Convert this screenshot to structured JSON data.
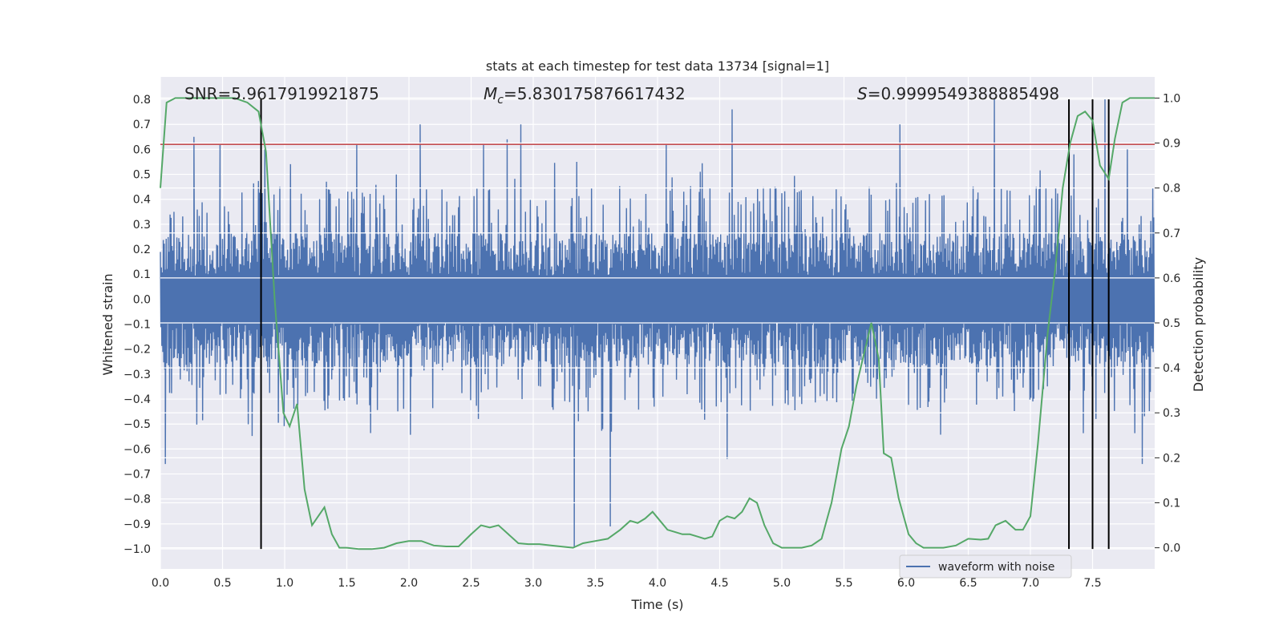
{
  "chart_data": {
    "type": "line",
    "title": "stats at each timestep for test data 13734 [signal=1]",
    "xlabel": "Time (s)",
    "ylabel": "Whitened strain",
    "y2label": "Detection probability",
    "xlim": [
      0.0,
      8.0
    ],
    "ylim": [
      -1.08,
      0.89
    ],
    "y2lim": [
      -0.047,
      1.047
    ],
    "x_ticks": [
      "0.0",
      "0.5",
      "1.0",
      "1.5",
      "2.0",
      "2.5",
      "3.0",
      "3.5",
      "4.0",
      "4.5",
      "5.0",
      "5.5",
      "6.0",
      "6.5",
      "7.0",
      "7.5"
    ],
    "y_ticks": [
      "0.8",
      "0.7",
      "0.6",
      "0.5",
      "0.4",
      "0.3",
      "0.2",
      "0.1",
      "0.0",
      "−0.1",
      "−0.2",
      "−0.3",
      "−0.4",
      "−0.5",
      "−0.6",
      "−0.7",
      "−0.8",
      "−0.9",
      "−1.0"
    ],
    "y2_ticks": [
      "1.0",
      "0.9",
      "0.8",
      "0.7",
      "0.6",
      "0.5",
      "0.4",
      "0.3",
      "0.2",
      "0.1",
      "0.0"
    ],
    "grid": true,
    "legend": {
      "position": "lower-right",
      "entries": [
        "waveform with noise"
      ]
    },
    "annotations": {
      "snr": "SNR=5.9617919921875",
      "mc_symbol": "M",
      "mc_sub": "c",
      "mc_value": "=5.830175876617432",
      "s_symbol": "S",
      "s_value": "=0.9999549388885498"
    },
    "threshold_line": {
      "y": 0.62,
      "color": "#c44e52"
    },
    "vertical_lines": [
      0.81,
      7.31,
      7.5,
      7.63
    ],
    "waveform": {
      "name": "waveform with noise",
      "color": "#4c72b0",
      "sample_rate": 256,
      "duration": 8.0,
      "core_amplitude": 0.27,
      "spikes": [
        [
          0.04,
          -0.66
        ],
        [
          0.27,
          0.65
        ],
        [
          0.48,
          0.62
        ],
        [
          0.84,
          0.6
        ],
        [
          1.58,
          0.62
        ],
        [
          2.09,
          0.7
        ],
        [
          2.6,
          0.62
        ],
        [
          2.79,
          0.64
        ],
        [
          2.9,
          0.7
        ],
        [
          3.33,
          -0.99
        ],
        [
          3.62,
          -0.91
        ],
        [
          4.07,
          0.62
        ],
        [
          4.56,
          -0.64
        ],
        [
          4.6,
          0.76
        ],
        [
          6.71,
          0.8
        ],
        [
          7.6,
          0.8
        ],
        [
          7.78,
          0.6
        ],
        [
          7.9,
          -0.66
        ],
        [
          3.35,
          0.55
        ],
        [
          5.95,
          0.7
        ],
        [
          7.35,
          0.58
        ]
      ]
    },
    "detection_probability": {
      "color": "#55a868",
      "x": [
        0.0,
        0.05,
        0.12,
        0.2,
        0.3,
        0.4,
        0.5,
        0.6,
        0.7,
        0.79,
        0.85,
        0.92,
        0.99,
        1.04,
        1.1,
        1.16,
        1.22,
        1.27,
        1.32,
        1.38,
        1.44,
        1.5,
        1.6,
        1.7,
        1.8,
        1.9,
        2.0,
        2.1,
        2.2,
        2.3,
        2.4,
        2.5,
        2.58,
        2.65,
        2.72,
        2.8,
        2.88,
        2.96,
        3.05,
        3.15,
        3.25,
        3.32,
        3.4,
        3.5,
        3.6,
        3.7,
        3.78,
        3.84,
        3.9,
        3.96,
        4.02,
        4.08,
        4.14,
        4.2,
        4.26,
        4.32,
        4.38,
        4.44,
        4.5,
        4.56,
        4.62,
        4.68,
        4.74,
        4.8,
        4.86,
        4.93,
        5.0,
        5.08,
        5.16,
        5.24,
        5.32,
        5.4,
        5.48,
        5.54,
        5.6,
        5.66,
        5.72,
        5.78,
        5.82,
        5.88,
        5.94,
        6.02,
        6.08,
        6.14,
        6.2,
        6.3,
        6.4,
        6.5,
        6.6,
        6.66,
        6.72,
        6.8,
        6.88,
        6.94,
        7.0,
        7.06,
        7.14,
        7.2,
        7.26,
        7.32,
        7.38,
        7.44,
        7.5,
        7.56,
        7.63,
        7.68,
        7.74,
        7.8,
        7.86,
        7.93,
        8.0
      ],
      "y": [
        0.8,
        0.99,
        1.0,
        1.0,
        1.0,
        1.0,
        1.0,
        1.0,
        0.99,
        0.97,
        0.88,
        0.55,
        0.3,
        0.27,
        0.32,
        0.13,
        0.05,
        0.07,
        0.09,
        0.03,
        0.0,
        0.0,
        -0.003,
        -0.003,
        0.0,
        0.01,
        0.015,
        0.015,
        0.005,
        0.003,
        0.003,
        0.03,
        0.05,
        0.045,
        0.05,
        0.03,
        0.01,
        0.008,
        0.008,
        0.005,
        0.002,
        0.0,
        0.01,
        0.015,
        0.02,
        0.04,
        0.06,
        0.055,
        0.065,
        0.08,
        0.06,
        0.04,
        0.035,
        0.03,
        0.03,
        0.025,
        0.02,
        0.025,
        0.06,
        0.07,
        0.065,
        0.08,
        0.11,
        0.1,
        0.05,
        0.01,
        0.0,
        0.0,
        0.0,
        0.005,
        0.02,
        0.1,
        0.22,
        0.27,
        0.36,
        0.43,
        0.5,
        0.42,
        0.21,
        0.2,
        0.11,
        0.03,
        0.01,
        0.0,
        0.0,
        0.0,
        0.005,
        0.02,
        0.018,
        0.02,
        0.05,
        0.06,
        0.04,
        0.04,
        0.07,
        0.23,
        0.48,
        0.62,
        0.8,
        0.9,
        0.96,
        0.97,
        0.95,
        0.85,
        0.82,
        0.91,
        0.99,
        1.0,
        1.0,
        1.0,
        1.0
      ]
    }
  }
}
